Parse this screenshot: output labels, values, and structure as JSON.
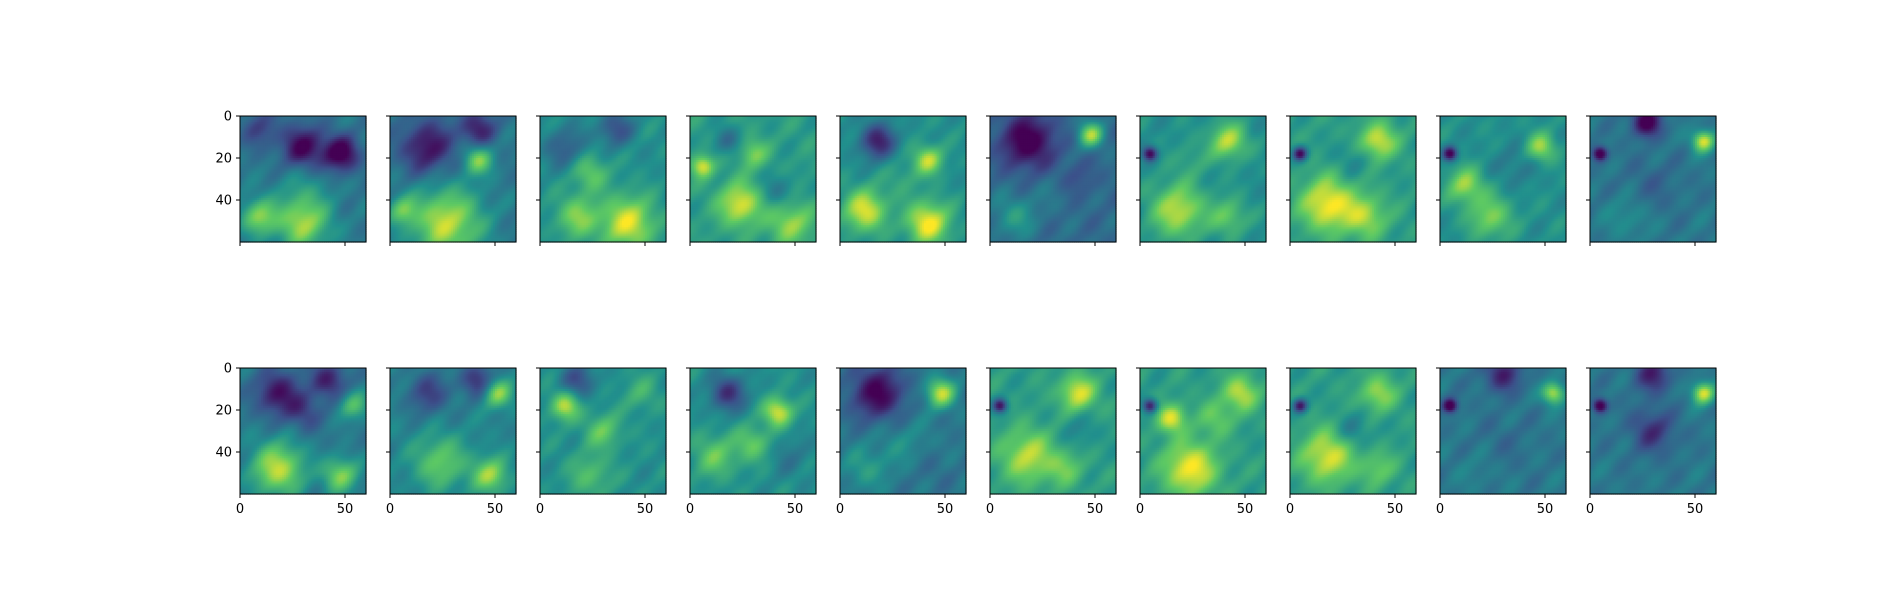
{
  "chart_data": {
    "type": "heatmap",
    "layout": {
      "rows": 2,
      "cols": 10
    },
    "image_size": [
      60,
      60
    ],
    "colormap": "viridis",
    "colormap_stops": [
      "#440154",
      "#3b528b",
      "#21908d",
      "#5dc963",
      "#fde725"
    ],
    "x_ticks": [
      0,
      50
    ],
    "y_ticks": [
      0,
      20,
      40
    ],
    "x_tick_labels": [
      "0",
      "50"
    ],
    "y_tick_labels": [
      "0",
      "20",
      "40"
    ],
    "xlim": [
      0,
      60
    ],
    "ylim": [
      60,
      0
    ],
    "shared_axes": true,
    "grid": false,
    "panels": [
      {
        "row": 0,
        "col": 0,
        "base": 0.4,
        "blobs": [
          [
            0.5,
            0.25,
            0.12,
            -0.4
          ],
          [
            0.8,
            0.3,
            0.1,
            -0.45
          ],
          [
            0.15,
            0.1,
            0.1,
            -0.2
          ],
          [
            0.5,
            0.85,
            0.15,
            0.45
          ],
          [
            0.15,
            0.8,
            0.1,
            0.4
          ],
          [
            0.5,
            0.55,
            0.15,
            0.1
          ]
        ]
      },
      {
        "row": 0,
        "col": 1,
        "base": 0.4,
        "blobs": [
          [
            0.3,
            0.25,
            0.15,
            -0.35
          ],
          [
            0.7,
            0.1,
            0.1,
            -0.3
          ],
          [
            0.7,
            0.35,
            0.08,
            0.4
          ],
          [
            0.45,
            0.85,
            0.2,
            0.5
          ],
          [
            0.1,
            0.75,
            0.08,
            0.3
          ]
        ]
      },
      {
        "row": 0,
        "col": 2,
        "base": 0.5,
        "blobs": [
          [
            0.2,
            0.25,
            0.12,
            -0.2
          ],
          [
            0.6,
            0.1,
            0.1,
            -0.25
          ],
          [
            0.4,
            0.45,
            0.1,
            0.25
          ],
          [
            0.7,
            0.85,
            0.15,
            0.45
          ],
          [
            0.3,
            0.8,
            0.12,
            0.3
          ]
        ]
      },
      {
        "row": 0,
        "col": 3,
        "base": 0.55,
        "blobs": [
          [
            0.1,
            0.4,
            0.06,
            0.4
          ],
          [
            0.4,
            0.7,
            0.12,
            0.4
          ],
          [
            0.5,
            0.3,
            0.08,
            0.25
          ],
          [
            0.7,
            0.6,
            0.1,
            -0.15
          ],
          [
            0.8,
            0.85,
            0.12,
            0.3
          ],
          [
            0.3,
            0.2,
            0.08,
            -0.2
          ]
        ]
      },
      {
        "row": 0,
        "col": 4,
        "base": 0.5,
        "blobs": [
          [
            0.3,
            0.2,
            0.1,
            -0.4
          ],
          [
            0.7,
            0.35,
            0.08,
            0.4
          ],
          [
            0.2,
            0.75,
            0.12,
            0.45
          ],
          [
            0.7,
            0.85,
            0.12,
            0.5
          ],
          [
            0.5,
            0.5,
            0.1,
            0.1
          ]
        ]
      },
      {
        "row": 0,
        "col": 5,
        "base": 0.35,
        "blobs": [
          [
            0.3,
            0.2,
            0.15,
            -0.4
          ],
          [
            0.8,
            0.15,
            0.07,
            0.5
          ],
          [
            0.2,
            0.8,
            0.12,
            0.2
          ],
          [
            0.5,
            0.6,
            0.1,
            0.05
          ],
          [
            0.7,
            0.5,
            0.1,
            -0.1
          ]
        ]
      },
      {
        "row": 0,
        "col": 6,
        "base": 0.5,
        "blobs": [
          [
            0.08,
            0.3,
            0.04,
            -0.5
          ],
          [
            0.7,
            0.2,
            0.1,
            0.4
          ],
          [
            0.3,
            0.75,
            0.15,
            0.4
          ],
          [
            0.7,
            0.8,
            0.1,
            0.25
          ],
          [
            0.4,
            0.35,
            0.1,
            0.1
          ]
        ]
      },
      {
        "row": 0,
        "col": 7,
        "base": 0.55,
        "blobs": [
          [
            0.08,
            0.3,
            0.04,
            -0.55
          ],
          [
            0.7,
            0.2,
            0.1,
            0.4
          ],
          [
            0.3,
            0.7,
            0.15,
            0.45
          ],
          [
            0.6,
            0.8,
            0.12,
            0.3
          ],
          [
            0.5,
            0.35,
            0.1,
            -0.1
          ]
        ]
      },
      {
        "row": 0,
        "col": 8,
        "base": 0.5,
        "blobs": [
          [
            0.08,
            0.3,
            0.04,
            -0.55
          ],
          [
            0.8,
            0.25,
            0.08,
            0.35
          ],
          [
            0.2,
            0.55,
            0.1,
            0.35
          ],
          [
            0.4,
            0.8,
            0.12,
            0.3
          ],
          [
            0.6,
            0.4,
            0.12,
            -0.1
          ]
        ]
      },
      {
        "row": 0,
        "col": 9,
        "base": 0.4,
        "blobs": [
          [
            0.08,
            0.3,
            0.04,
            -0.5
          ],
          [
            0.45,
            0.05,
            0.08,
            -0.45
          ],
          [
            0.9,
            0.2,
            0.06,
            0.55
          ],
          [
            0.5,
            0.55,
            0.15,
            -0.08
          ],
          [
            0.3,
            0.8,
            0.12,
            0.1
          ]
        ]
      },
      {
        "row": 1,
        "col": 0,
        "base": 0.4,
        "blobs": [
          [
            0.3,
            0.2,
            0.12,
            -0.35
          ],
          [
            0.7,
            0.1,
            0.1,
            -0.3
          ],
          [
            0.5,
            0.35,
            0.1,
            -0.2
          ],
          [
            0.3,
            0.8,
            0.15,
            0.5
          ],
          [
            0.8,
            0.85,
            0.1,
            0.4
          ],
          [
            0.9,
            0.3,
            0.08,
            0.3
          ]
        ]
      },
      {
        "row": 1,
        "col": 1,
        "base": 0.45,
        "blobs": [
          [
            0.3,
            0.2,
            0.12,
            -0.25
          ],
          [
            0.7,
            0.1,
            0.1,
            -0.3
          ],
          [
            0.85,
            0.2,
            0.08,
            0.4
          ],
          [
            0.4,
            0.75,
            0.15,
            0.3
          ],
          [
            0.8,
            0.85,
            0.1,
            0.4
          ]
        ]
      },
      {
        "row": 1,
        "col": 2,
        "base": 0.5,
        "blobs": [
          [
            0.2,
            0.3,
            0.08,
            0.4
          ],
          [
            0.3,
            0.1,
            0.1,
            -0.25
          ],
          [
            0.5,
            0.5,
            0.1,
            0.25
          ],
          [
            0.4,
            0.85,
            0.12,
            0.2
          ],
          [
            0.8,
            0.2,
            0.1,
            0.15
          ]
        ]
      },
      {
        "row": 1,
        "col": 3,
        "base": 0.5,
        "blobs": [
          [
            0.3,
            0.2,
            0.1,
            -0.35
          ],
          [
            0.7,
            0.35,
            0.08,
            0.45
          ],
          [
            0.5,
            0.6,
            0.1,
            0.25
          ],
          [
            0.2,
            0.7,
            0.12,
            0.25
          ],
          [
            0.8,
            0.7,
            0.12,
            -0.1
          ]
        ]
      },
      {
        "row": 1,
        "col": 4,
        "base": 0.4,
        "blobs": [
          [
            0.3,
            0.2,
            0.15,
            -0.4
          ],
          [
            0.8,
            0.2,
            0.08,
            0.5
          ],
          [
            0.5,
            0.6,
            0.15,
            0.1
          ],
          [
            0.2,
            0.8,
            0.12,
            0.15
          ],
          [
            0.7,
            0.8,
            0.12,
            -0.05
          ]
        ]
      },
      {
        "row": 1,
        "col": 5,
        "base": 0.55,
        "blobs": [
          [
            0.08,
            0.3,
            0.04,
            -0.5
          ],
          [
            0.7,
            0.2,
            0.1,
            0.4
          ],
          [
            0.3,
            0.7,
            0.15,
            0.35
          ],
          [
            0.7,
            0.5,
            0.1,
            -0.1
          ],
          [
            0.6,
            0.8,
            0.1,
            0.2
          ]
        ]
      },
      {
        "row": 1,
        "col": 6,
        "base": 0.55,
        "blobs": [
          [
            0.08,
            0.3,
            0.04,
            -0.5
          ],
          [
            0.25,
            0.4,
            0.08,
            0.4
          ],
          [
            0.4,
            0.8,
            0.15,
            0.45
          ],
          [
            0.8,
            0.2,
            0.1,
            0.35
          ],
          [
            0.6,
            0.4,
            0.1,
            0.2
          ]
        ]
      },
      {
        "row": 1,
        "col": 7,
        "base": 0.55,
        "blobs": [
          [
            0.08,
            0.3,
            0.04,
            -0.5
          ],
          [
            0.7,
            0.2,
            0.1,
            0.3
          ],
          [
            0.3,
            0.7,
            0.15,
            0.4
          ],
          [
            0.5,
            0.5,
            0.1,
            -0.15
          ],
          [
            0.7,
            0.8,
            0.1,
            0.2
          ]
        ]
      },
      {
        "row": 1,
        "col": 8,
        "base": 0.4,
        "blobs": [
          [
            0.08,
            0.3,
            0.04,
            -0.5
          ],
          [
            0.5,
            0.05,
            0.1,
            -0.3
          ],
          [
            0.9,
            0.2,
            0.06,
            0.5
          ],
          [
            0.5,
            0.6,
            0.15,
            -0.05
          ],
          [
            0.3,
            0.8,
            0.12,
            0.05
          ]
        ]
      },
      {
        "row": 1,
        "col": 9,
        "base": 0.4,
        "blobs": [
          [
            0.08,
            0.3,
            0.04,
            -0.5
          ],
          [
            0.5,
            0.05,
            0.1,
            -0.3
          ],
          [
            0.9,
            0.2,
            0.06,
            0.55
          ],
          [
            0.5,
            0.5,
            0.12,
            -0.25
          ],
          [
            0.6,
            0.8,
            0.12,
            0.0
          ]
        ]
      }
    ]
  }
}
